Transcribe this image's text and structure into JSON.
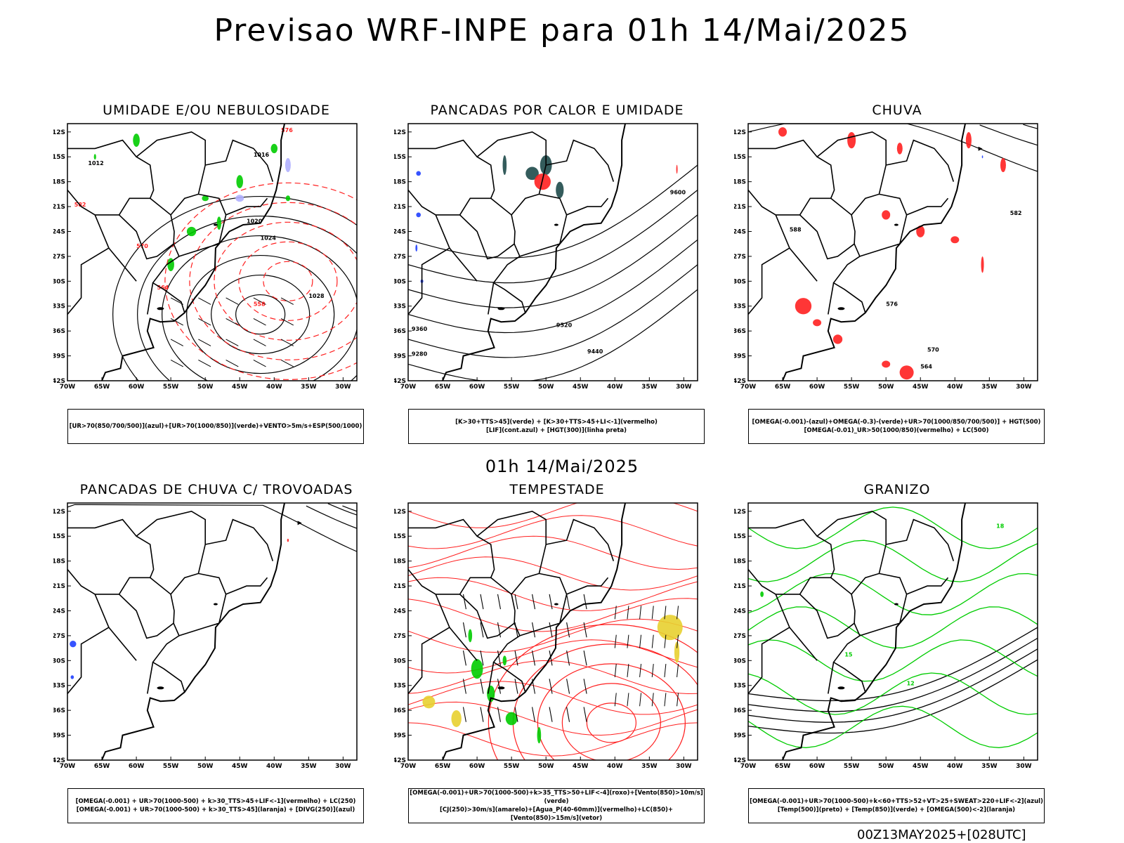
{
  "header": {
    "title": "Previsao WRF-INPE  para 01h 14/Mai/2025",
    "mid_date": "01h 14/Mai/2025",
    "footer_code": "00Z13MAY2025+[028UTC]"
  },
  "axes": {
    "lat_ticks": [
      "12S",
      "15S",
      "18S",
      "21S",
      "24S",
      "27S",
      "30S",
      "33S",
      "36S",
      "39S",
      "42S"
    ],
    "lon_ticks": [
      "70W",
      "65W",
      "60W",
      "55W",
      "50W",
      "45W",
      "40W",
      "35W",
      "30W"
    ]
  },
  "panels": [
    {
      "id": "umidade",
      "title": "UMIDADE E/OU NEBULOSIDADE",
      "legend_lines": [
        "[UR>70(850/700/500)](azul)+[UR>70(1000/850)](verde)+VENTO>5m/s+ESP(500/1000)"
      ],
      "contour_labels": [
        "1016",
        "1012",
        "1020",
        "1024",
        "1028",
        "570",
        "576",
        "564",
        "558",
        "582"
      ]
    },
    {
      "id": "pancadas-calor",
      "title": "PANCADAS POR CALOR E UMIDADE",
      "legend_lines": [
        "[K>30+TTS>45](verde) + [K>30+TTS>45+LI<-1](vermelho)",
        "[LIF](cont.azul) + [HGT(300)](linha preta)"
      ],
      "contour_labels": [
        "9600",
        "9520",
        "9440",
        "9360",
        "9280"
      ]
    },
    {
      "id": "chuva",
      "title": "CHUVA",
      "legend_lines": [
        "[OMEGA(-0.001)-(azul)+OMEGA(-0.3)-(verde)+UR>70(1000/850/700/500)] + HGT(500)",
        "[OMEGA(-0.01)_UR>50(1000/850)(vermelho) + LC(500)"
      ],
      "contour_labels": [
        "588",
        "582",
        "576",
        "570",
        "564"
      ]
    },
    {
      "id": "pancadas-trovoadas",
      "title": "PANCADAS DE CHUVA C/ TROVOADAS",
      "legend_lines": [
        "[OMEGA(-0.001) + UR>70(1000-500) + k>30_TTS>45+LIF<-1](vermelho) + LC(250)",
        "[OMEGA(-0.001) + UR>70(1000-500) + k>30_TTS>45](laranja) + [DIVG(250)](azul)"
      ],
      "contour_labels": []
    },
    {
      "id": "tempestade",
      "title": "TEMPESTADE",
      "legend_lines": [
        "[OMEGA(-0.001)+UR>70(1000-500)+k>35_TTS>50+LIF<-4](roxo)+[Vento(850)>10m/s](verde)",
        "[CJ(250)>30m/s](amarelo)+[Agua_P(40-60mm)](vermelho)+LC(850)+[Vento(850)>15m/s](vetor)"
      ],
      "contour_labels": []
    },
    {
      "id": "granizo",
      "title": "GRANIZO",
      "legend_lines": [
        "[OMEGA(-0.001)+UR>70(1000-500)+k<60+TTS>52+VT>25+SWEAT>220+LIF<-2](azul)",
        "[Temp(500)](preto) + [Temp(850)](verde) + [OMEGA(500)<-2](laranja)"
      ],
      "contour_labels": [
        "15",
        "12",
        "18"
      ]
    }
  ],
  "colors": {
    "coast": "#000000",
    "red": "#ff2020",
    "green": "#00cc00",
    "blue": "#2040ff",
    "yellow": "#e8d030",
    "teal": "#1e4a4a",
    "lavender": "#b0b0ff"
  }
}
